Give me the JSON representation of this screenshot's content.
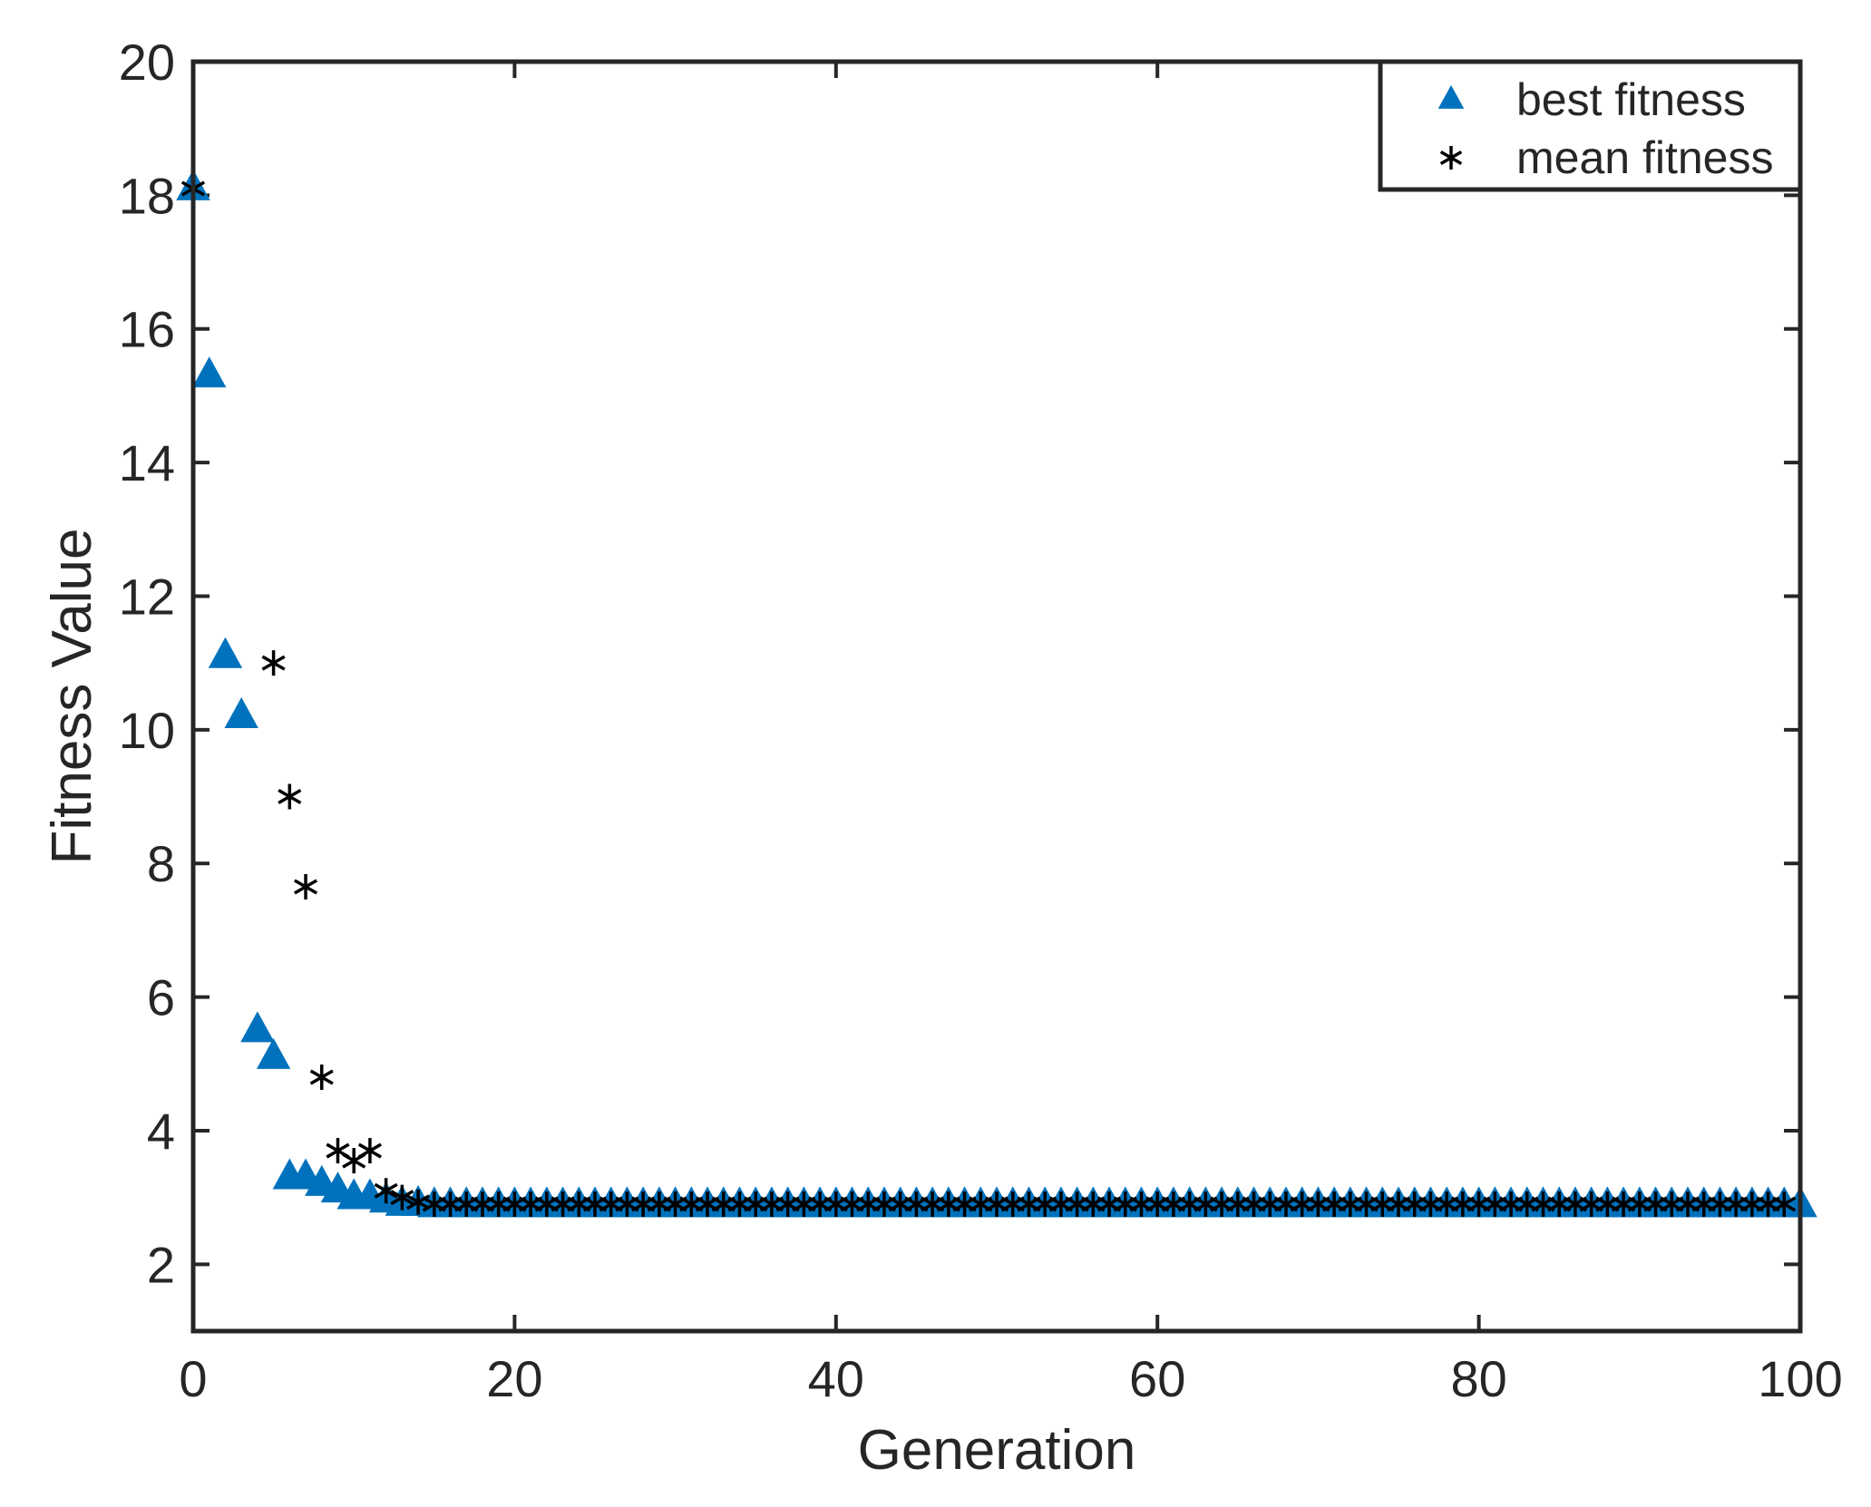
{
  "chart_data": {
    "type": "scatter",
    "xlabel": "Generation",
    "ylabel": "Fitness Value",
    "xlim": [
      0,
      100
    ],
    "ylim": [
      1,
      20
    ],
    "xticks": [
      "0",
      "20",
      "40",
      "60",
      "80",
      "100"
    ],
    "yticks": [
      "2",
      "4",
      "6",
      "8",
      "10",
      "12",
      "14",
      "16",
      "18",
      "20"
    ],
    "grid": false,
    "legend_position": "top-right",
    "series": [
      {
        "name": "best fitness",
        "marker": "triangle",
        "color": "#0072BD",
        "x": [
          0,
          1,
          2,
          3,
          4,
          5,
          6,
          7,
          8,
          9,
          10,
          11,
          12,
          13,
          14,
          15,
          16,
          17,
          18,
          19,
          20,
          21,
          22,
          23,
          24,
          25,
          26,
          27,
          28,
          29,
          30,
          31,
          32,
          33,
          34,
          35,
          36,
          37,
          38,
          39,
          40,
          41,
          42,
          43,
          44,
          45,
          46,
          47,
          48,
          49,
          50,
          51,
          52,
          53,
          54,
          55,
          56,
          57,
          58,
          59,
          60,
          61,
          62,
          63,
          64,
          65,
          66,
          67,
          68,
          69,
          70,
          71,
          72,
          73,
          74,
          75,
          76,
          77,
          78,
          79,
          80,
          81,
          82,
          83,
          84,
          85,
          86,
          87,
          88,
          89,
          90,
          91,
          92,
          93,
          94,
          95,
          96,
          97,
          98,
          99,
          100
        ],
        "y": [
          18.1,
          15.3,
          11.1,
          10.2,
          5.5,
          5.1,
          3.3,
          3.3,
          3.2,
          3.1,
          3.0,
          3.0,
          2.95,
          2.9,
          2.9,
          2.88,
          2.88,
          2.88,
          2.88,
          2.88,
          2.88,
          2.88,
          2.88,
          2.88,
          2.88,
          2.88,
          2.88,
          2.88,
          2.88,
          2.88,
          2.88,
          2.88,
          2.88,
          2.88,
          2.88,
          2.88,
          2.88,
          2.88,
          2.88,
          2.88,
          2.88,
          2.88,
          2.88,
          2.88,
          2.88,
          2.88,
          2.88,
          2.88,
          2.88,
          2.88,
          2.88,
          2.88,
          2.88,
          2.88,
          2.88,
          2.88,
          2.88,
          2.88,
          2.88,
          2.88,
          2.88,
          2.88,
          2.88,
          2.88,
          2.88,
          2.88,
          2.88,
          2.88,
          2.88,
          2.88,
          2.88,
          2.88,
          2.88,
          2.88,
          2.88,
          2.88,
          2.88,
          2.88,
          2.88,
          2.88,
          2.88,
          2.88,
          2.88,
          2.88,
          2.88,
          2.88,
          2.88,
          2.88,
          2.88,
          2.88,
          2.88,
          2.88,
          2.88,
          2.88,
          2.88,
          2.88,
          2.88,
          2.88,
          2.88,
          2.88,
          2.88
        ]
      },
      {
        "name": "mean fitness",
        "marker": "asterisk",
        "color": "#000000",
        "x": [
          0,
          5,
          6,
          7,
          8,
          9,
          10,
          11,
          12,
          13,
          14,
          15,
          16,
          17,
          18,
          19,
          20,
          21,
          22,
          23,
          24,
          25,
          26,
          27,
          28,
          29,
          30,
          31,
          32,
          33,
          34,
          35,
          36,
          37,
          38,
          39,
          40,
          41,
          42,
          43,
          44,
          45,
          46,
          47,
          48,
          49,
          50,
          51,
          52,
          53,
          54,
          55,
          56,
          57,
          58,
          59,
          60,
          61,
          62,
          63,
          64,
          65,
          66,
          67,
          68,
          69,
          70,
          71,
          72,
          73,
          74,
          75,
          76,
          77,
          78,
          79,
          80,
          81,
          82,
          83,
          84,
          85,
          86,
          87,
          88,
          89,
          90,
          91,
          92,
          93,
          94,
          95,
          96,
          97,
          98,
          99
        ],
        "y": [
          18.1,
          11.0,
          9.0,
          7.65,
          4.8,
          3.7,
          3.55,
          3.7,
          3.1,
          3.0,
          2.93,
          2.9,
          2.9,
          2.9,
          2.9,
          2.9,
          2.9,
          2.9,
          2.9,
          2.9,
          2.9,
          2.9,
          2.9,
          2.9,
          2.9,
          2.9,
          2.9,
          2.9,
          2.9,
          2.9,
          2.9,
          2.9,
          2.9,
          2.9,
          2.9,
          2.9,
          2.9,
          2.9,
          2.9,
          2.9,
          2.9,
          2.9,
          2.9,
          2.9,
          2.9,
          2.9,
          2.9,
          2.9,
          2.9,
          2.9,
          2.9,
          2.9,
          2.9,
          2.9,
          2.9,
          2.9,
          2.9,
          2.9,
          2.9,
          2.9,
          2.9,
          2.9,
          2.9,
          2.9,
          2.9,
          2.9,
          2.9,
          2.9,
          2.9,
          2.9,
          2.9,
          2.9,
          2.9,
          2.9,
          2.9,
          2.9,
          2.9,
          2.9,
          2.9,
          2.9,
          2.9,
          2.9,
          2.9,
          2.9,
          2.9,
          2.9,
          2.9,
          2.9,
          2.9,
          2.9,
          2.9,
          2.9,
          2.9,
          2.9,
          2.9,
          2.9
        ]
      }
    ]
  }
}
